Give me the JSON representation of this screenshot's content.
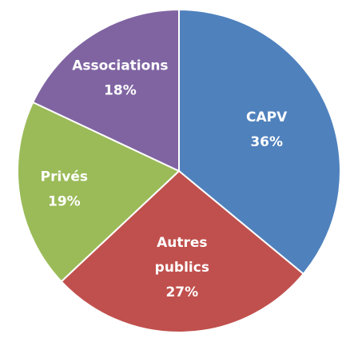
{
  "chart_data": {
    "type": "pie",
    "categories": [
      "CAPV",
      "Autres publics",
      "Privés",
      "Associations"
    ],
    "values": [
      36,
      27,
      19,
      18
    ],
    "value_labels": [
      "36%",
      "27%",
      "19%",
      "18%"
    ],
    "colors": [
      "#4f81bd",
      "#c0504d",
      "#9bbb59",
      "#8064a2"
    ]
  }
}
